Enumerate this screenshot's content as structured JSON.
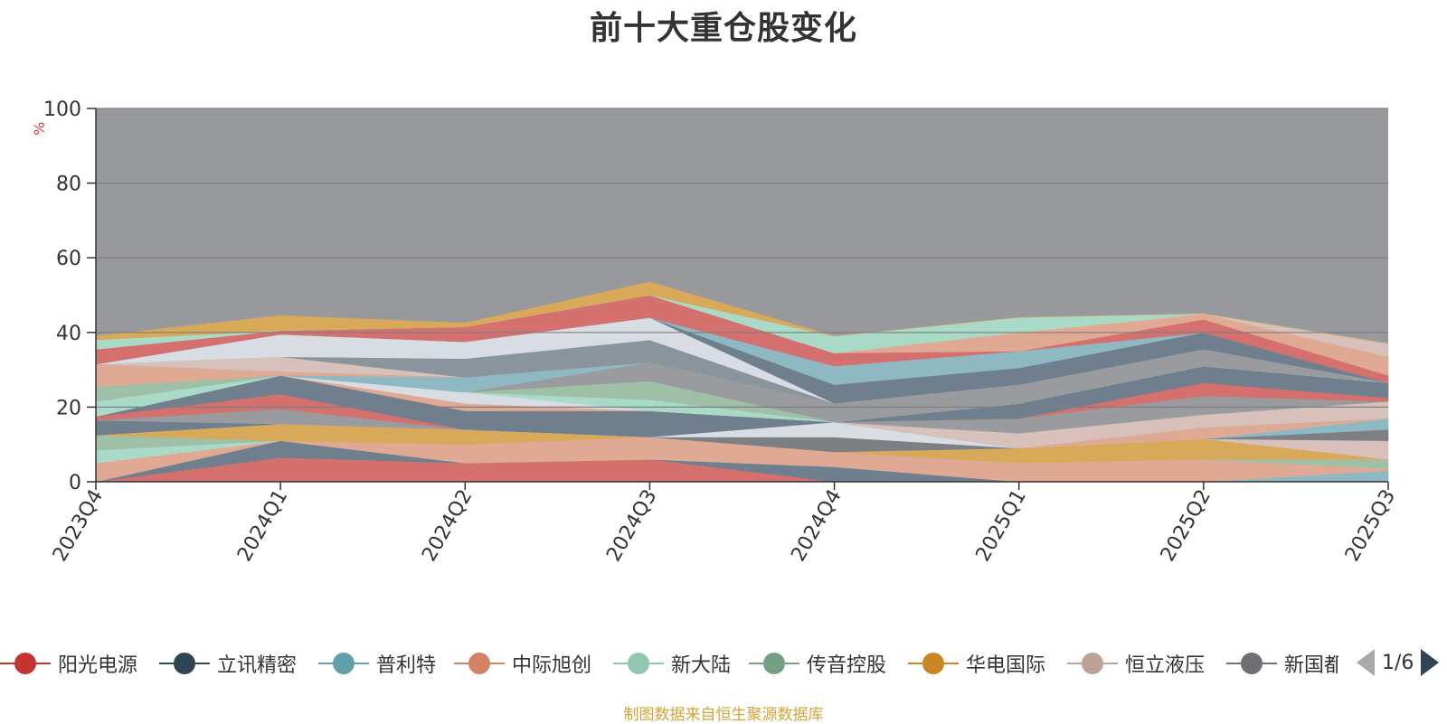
{
  "title": "前十大重仓股变化",
  "source_note": "制图数据来自恒生聚源数据库",
  "pager": {
    "text": "1/6"
  },
  "colors": {
    "plot_background": "#98999c",
    "gridline": "#7d7e82",
    "axis": "#333333"
  },
  "chart_data": {
    "type": "area",
    "stacked": true,
    "title": "前十大重仓股变化",
    "ylabel": "%",
    "ylim": [
      0,
      100
    ],
    "yticks": [
      0,
      20,
      40,
      60,
      80,
      100
    ],
    "grid": true,
    "legend_position": "bottom",
    "categories": [
      "2023Q4",
      "2024Q1",
      "2024Q2",
      "2024Q3",
      "2024Q4",
      "2025Q1",
      "2025Q2",
      "2025Q3"
    ],
    "series": [
      {
        "color": "#d4716f",
        "values": [
          0,
          6.5,
          5,
          6,
          0,
          0,
          0,
          0
        ]
      },
      {
        "color": "#6f7f8d",
        "values": [
          0,
          4.5,
          0,
          0,
          4,
          0,
          0,
          0
        ]
      },
      {
        "color": "#8eb9c2",
        "values": [
          0,
          0,
          0,
          0,
          0,
          0,
          0,
          3
        ]
      },
      {
        "color": "#e0a993",
        "values": [
          5,
          0,
          5,
          6,
          4,
          5,
          6,
          0.5
        ]
      },
      {
        "color": "#a9dac8",
        "values": [
          3.5,
          0,
          0,
          0,
          0,
          0,
          0,
          0
        ]
      },
      {
        "color": "#9fbfa6",
        "values": [
          4,
          0,
          0,
          0,
          0,
          0,
          0,
          2.5
        ]
      },
      {
        "color": "#d9a95a",
        "values": [
          0,
          4.5,
          4,
          0,
          0,
          4,
          5.5,
          0
        ]
      },
      {
        "color": "#d8c0bb",
        "values": [
          0,
          0,
          0,
          0,
          0,
          0,
          0,
          5
        ]
      },
      {
        "color": "#7d7f83",
        "values": [
          0,
          0,
          0,
          0,
          4,
          0,
          0,
          3
        ]
      },
      {
        "color": "#8eb9c2",
        "values": [
          0,
          0,
          0,
          0,
          0,
          0,
          0,
          3
        ]
      },
      {
        "color": "#d8dde3",
        "values": [
          0,
          0,
          0,
          0,
          4,
          0,
          0,
          0
        ]
      },
      {
        "color": "#e0a993",
        "values": [
          0,
          0,
          0,
          0,
          0,
          0,
          3,
          0
        ]
      },
      {
        "color": "#6f7f8d",
        "values": [
          4,
          0,
          0,
          7,
          0,
          0,
          0,
          0
        ]
      },
      {
        "color": "#d8c0bb",
        "values": [
          0,
          0,
          0,
          0,
          0,
          4,
          3.5,
          4.5
        ]
      },
      {
        "color": "#9a9b9e",
        "values": [
          0,
          4,
          0,
          0,
          0,
          4,
          5,
          0
        ]
      },
      {
        "color": "#d4716f",
        "values": [
          1,
          4,
          0,
          0,
          0,
          0,
          3.5,
          1
        ]
      },
      {
        "color": "#6f7f8d",
        "values": [
          0,
          5,
          5,
          0,
          0,
          4,
          4.5,
          4
        ]
      },
      {
        "color": "#e0a993",
        "values": [
          0,
          0,
          2,
          0,
          0,
          0,
          0,
          0
        ]
      },
      {
        "color": "#d8dde3",
        "values": [
          0,
          0,
          3,
          0,
          0,
          0,
          0,
          0
        ]
      },
      {
        "color": "#a9dac8",
        "values": [
          4,
          0,
          0,
          3,
          0,
          0,
          0,
          0
        ]
      },
      {
        "color": "#9fbfa6",
        "values": [
          4,
          0,
          0,
          5,
          0,
          0,
          0,
          0
        ]
      },
      {
        "color": "#9a9b9e",
        "values": [
          0,
          0,
          0,
          5,
          5,
          5,
          4.5,
          0
        ]
      },
      {
        "color": "#8eb9c2",
        "values": [
          0,
          0,
          4,
          0,
          0,
          0,
          0,
          0
        ]
      },
      {
        "color": "#e0a993",
        "values": [
          6,
          1,
          0,
          0,
          0,
          0,
          0,
          0
        ]
      },
      {
        "color": "#6f7f8d",
        "values": [
          0,
          0,
          0,
          0,
          0,
          0,
          0,
          0
        ]
      },
      {
        "color": "#d8c0bb",
        "values": [
          0,
          4,
          0,
          0,
          0,
          0,
          0,
          0
        ]
      },
      {
        "color": "#8a949c",
        "values": [
          0,
          0,
          5,
          6,
          0,
          0,
          0,
          0
        ]
      },
      {
        "color": "#d8dde3",
        "values": [
          0,
          6,
          4.5,
          6,
          0,
          0,
          0,
          0
        ]
      },
      {
        "color": "#6f7f8d",
        "values": [
          0,
          0,
          0,
          0,
          5,
          4.5,
          4.5,
          0
        ]
      },
      {
        "color": "#8eb9c2",
        "values": [
          0,
          0,
          0,
          0,
          5,
          4.5,
          0,
          0
        ]
      },
      {
        "color": "#d4716f",
        "values": [
          4,
          1,
          4,
          6,
          3.5,
          0,
          3.5,
          2
        ]
      },
      {
        "color": "#e0a993",
        "values": [
          0,
          0,
          0,
          0,
          0,
          5,
          1.5,
          5
        ]
      },
      {
        "color": "#d8c0bb",
        "values": [
          0,
          0,
          0,
          0,
          0,
          0,
          0,
          3.5
        ]
      },
      {
        "color": "#a9dac8",
        "values": [
          2.5,
          0,
          0,
          0,
          4.5,
          4,
          0,
          0
        ]
      },
      {
        "color": "#d9a95a",
        "values": [
          1,
          4,
          1,
          3.5,
          0,
          0,
          0,
          0
        ]
      }
    ],
    "legend": [
      {
        "label": "阳光电源",
        "color": "#c23531"
      },
      {
        "label": "立讯精密",
        "color": "#2f4554"
      },
      {
        "label": "普利特",
        "color": "#61a0a8"
      },
      {
        "label": "中际旭创",
        "color": "#d48265"
      },
      {
        "label": "新大陆",
        "color": "#91c7ae"
      },
      {
        "label": "传音控股",
        "color": "#749f83"
      },
      {
        "label": "华电国际",
        "color": "#ca8622"
      },
      {
        "label": "恒立液压",
        "color": "#bda29a"
      },
      {
        "label": "新国都",
        "color": "#6e7074"
      }
    ]
  }
}
